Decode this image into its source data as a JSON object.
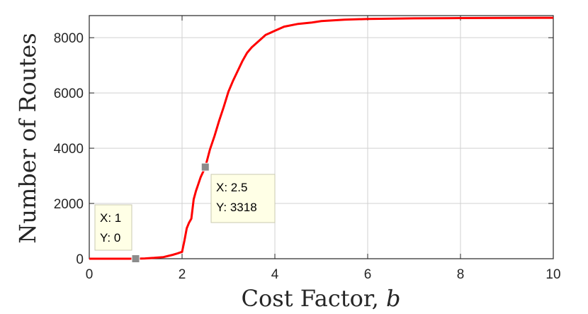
{
  "chart_data": {
    "type": "line",
    "xlabel": "Cost Factor,",
    "xlabel_var": "b",
    "ylabel": "Number of Routes",
    "xlim": [
      0,
      10
    ],
    "ylim": [
      0,
      8800
    ],
    "x_ticks": [
      0,
      2,
      4,
      6,
      8,
      10
    ],
    "y_ticks": [
      0,
      2000,
      4000,
      6000,
      8000
    ],
    "grid": true,
    "line_color": "#ff0000",
    "series": [
      {
        "x": [
          0,
          0.5,
          1,
          1.2,
          1.4,
          1.6,
          1.8,
          1.9,
          2.0,
          2.05,
          2.1,
          2.15,
          2.2,
          2.25,
          2.3,
          2.35,
          2.4,
          2.5,
          2.6,
          2.7,
          2.8,
          2.9,
          3.0,
          3.1,
          3.2,
          3.3,
          3.4,
          3.5,
          3.6,
          3.7,
          3.8,
          4.0,
          4.2,
          4.5,
          4.8,
          5.0,
          5.5,
          6.0,
          7.0,
          8.0,
          9.0,
          10.0
        ],
        "y": [
          0,
          0,
          0,
          10,
          30,
          60,
          140,
          190,
          250,
          650,
          1100,
          1300,
          1450,
          2150,
          2450,
          2700,
          2950,
          3318,
          3950,
          4450,
          5000,
          5500,
          6050,
          6450,
          6800,
          7150,
          7450,
          7650,
          7800,
          7950,
          8100,
          8250,
          8400,
          8500,
          8550,
          8600,
          8650,
          8680,
          8700,
          8710,
          8715,
          8720
        ]
      }
    ],
    "annotations": [
      {
        "x_text": "X: 1",
        "y_text": "Y: 0",
        "x": 1,
        "y": 0
      },
      {
        "x_text": "X: 2.5",
        "y_text": "Y: 3318",
        "x": 2.5,
        "y": 3318
      }
    ]
  }
}
